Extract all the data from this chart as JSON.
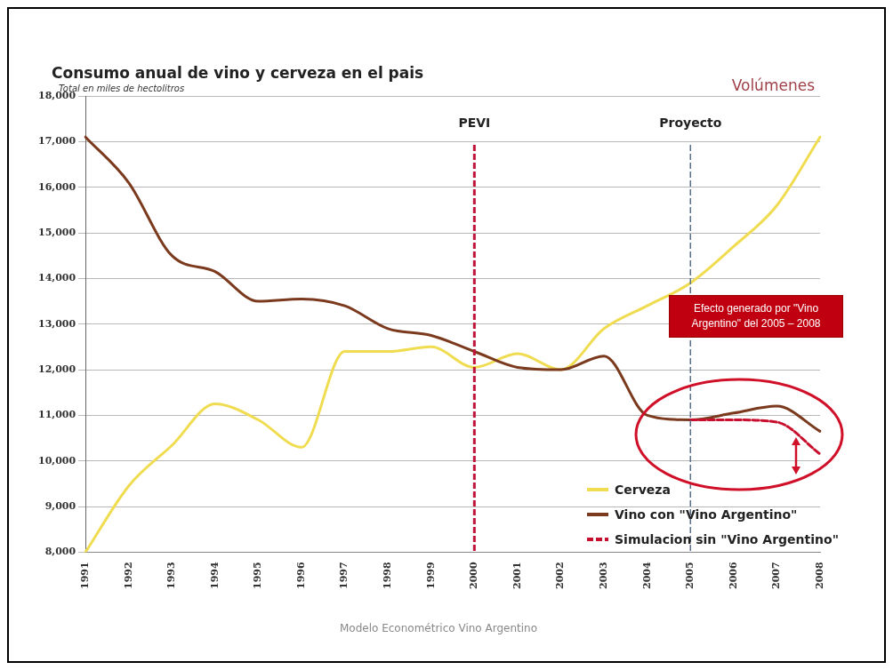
{
  "chart_data": {
    "type": "line",
    "title": "Consumo anual de vino y cerveza en el pais",
    "subtitle": "Total en miles de hectolitros",
    "categories": [
      "1991",
      "1992",
      "1993",
      "1994",
      "1995",
      "1996",
      "1997",
      "1998",
      "1999",
      "2000",
      "2001",
      "2002",
      "2003",
      "2004",
      "2005",
      "2006",
      "2007",
      "2008"
    ],
    "series": [
      {
        "name": "Cerveza",
        "color": "#f0dc50",
        "values": [
          8000,
          9450,
          10340,
          11250,
          10900,
          10300,
          12400,
          12400,
          12500,
          12050,
          12350,
          12000,
          12900,
          13400,
          13900,
          14700,
          15600,
          17100
        ]
      },
      {
        "name": "Vino con \"Vino Argentino\"",
        "color": "#7b3a1e",
        "values": [
          17100,
          16100,
          14500,
          14150,
          13500,
          13550,
          13400,
          12900,
          12750,
          12400,
          12050,
          12000,
          12300,
          11000,
          10900,
          11050,
          11200,
          10650
        ]
      },
      {
        "name": "Simulacion sin \"Vino Argentino\"",
        "color": "#c8102e",
        "line_style": "dashed",
        "values": [
          null,
          null,
          null,
          null,
          null,
          null,
          null,
          null,
          null,
          null,
          null,
          null,
          null,
          null,
          10900,
          10900,
          10850,
          10150
        ]
      }
    ],
    "ylim": [
      8000,
      18000
    ],
    "yticks": [
      {
        "value": 8000,
        "label": "8,000"
      },
      {
        "value": 9000,
        "label": "9,000"
      },
      {
        "value": 10000,
        "label": "10,000"
      },
      {
        "value": 11000,
        "label": "11,000"
      },
      {
        "value": 12000,
        "label": "12,000"
      },
      {
        "value": 13000,
        "label": "13,000"
      },
      {
        "value": 14000,
        "label": "14,000"
      },
      {
        "value": 15000,
        "label": "15,000"
      },
      {
        "value": 16000,
        "label": "16,000"
      },
      {
        "value": 17000,
        "label": "17,000"
      },
      {
        "value": 18000,
        "label": "18,000"
      }
    ],
    "ref_lines": [
      {
        "axis": "x",
        "value": "2000",
        "label": "PEVI",
        "color": "#c0143c",
        "line_style": "dashed"
      },
      {
        "axis": "x",
        "value": "2005",
        "label": "Proyecto",
        "color": "#5a6f8a",
        "line_style": "dashed"
      }
    ],
    "annotations": [
      "Volúmenes",
      "Efecto generado por \"Vino Argentino\" del 2005 – 2008",
      "Modelo Econométrico Vino Argentino"
    ],
    "grid": "y",
    "legend": "bottom right",
    "marker": "none",
    "line_style": "solid"
  }
}
